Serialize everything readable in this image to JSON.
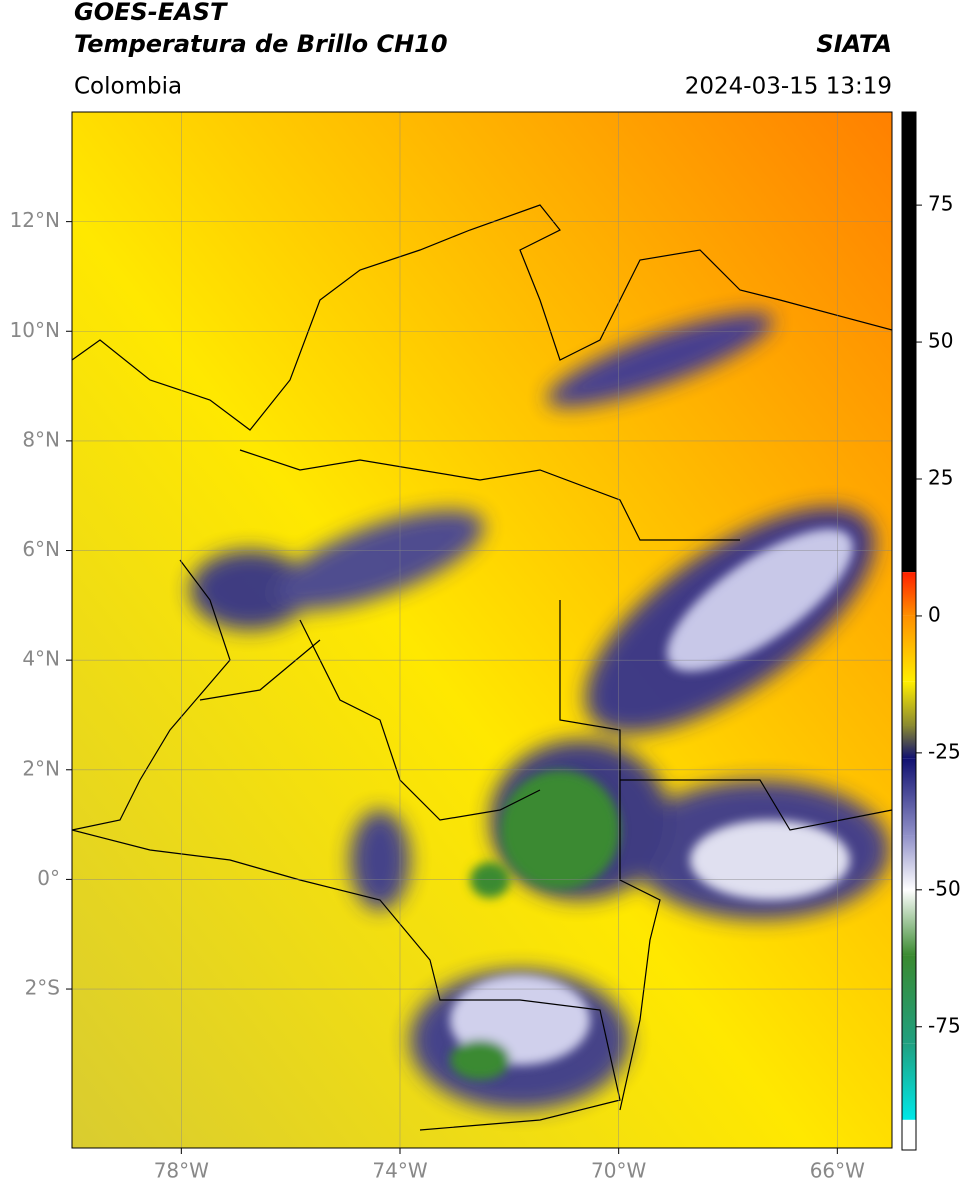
{
  "header": {
    "title": "GOES-EAST",
    "subtitle": "Temperatura de Brillo CH10",
    "region": "Colombia",
    "source": "SIATA",
    "timestamp": "2024-03-15 13:19"
  },
  "map": {
    "lonlim": [
      -80,
      -65
    ],
    "latlim": [
      -4.9,
      14
    ],
    "lonticks": [
      {
        "value": -78,
        "label": "78°W"
      },
      {
        "value": -74,
        "label": "74°W"
      },
      {
        "value": -70,
        "label": "70°W"
      },
      {
        "value": -66,
        "label": "66°W"
      }
    ],
    "latticks": [
      {
        "value": 12,
        "label": "12°N"
      },
      {
        "value": 10,
        "label": "10°N"
      },
      {
        "value": 8,
        "label": "8°N"
      },
      {
        "value": 6,
        "label": "6°N"
      },
      {
        "value": 4,
        "label": "4°N"
      },
      {
        "value": 2,
        "label": "2°N"
      },
      {
        "value": 0,
        "label": "0°"
      },
      {
        "value": -2,
        "label": "2°S"
      }
    ]
  },
  "colorbar": {
    "lim": [
      -97.5,
      92
    ],
    "ticks": [
      75,
      50,
      25,
      0,
      -25,
      -50,
      -75
    ],
    "stops": [
      {
        "value": 92,
        "color": "#000000"
      },
      {
        "value": 8,
        "color": "#000000"
      },
      {
        "value": 8,
        "color": "#ff2000"
      },
      {
        "value": 0,
        "color": "#ff9000"
      },
      {
        "value": -12,
        "color": "#ffee00"
      },
      {
        "value": -20,
        "color": "#8a8a30"
      },
      {
        "value": -26,
        "color": "#101070"
      },
      {
        "value": -40,
        "color": "#9090c8"
      },
      {
        "value": -50,
        "color": "#ffffff"
      },
      {
        "value": -62,
        "color": "#3a8a30"
      },
      {
        "value": -78,
        "color": "#20a080"
      },
      {
        "value": -92,
        "color": "#00e8e8"
      },
      {
        "value": -92,
        "color": "#ffffff"
      },
      {
        "value": -97.5,
        "color": "#ffffff"
      }
    ]
  }
}
